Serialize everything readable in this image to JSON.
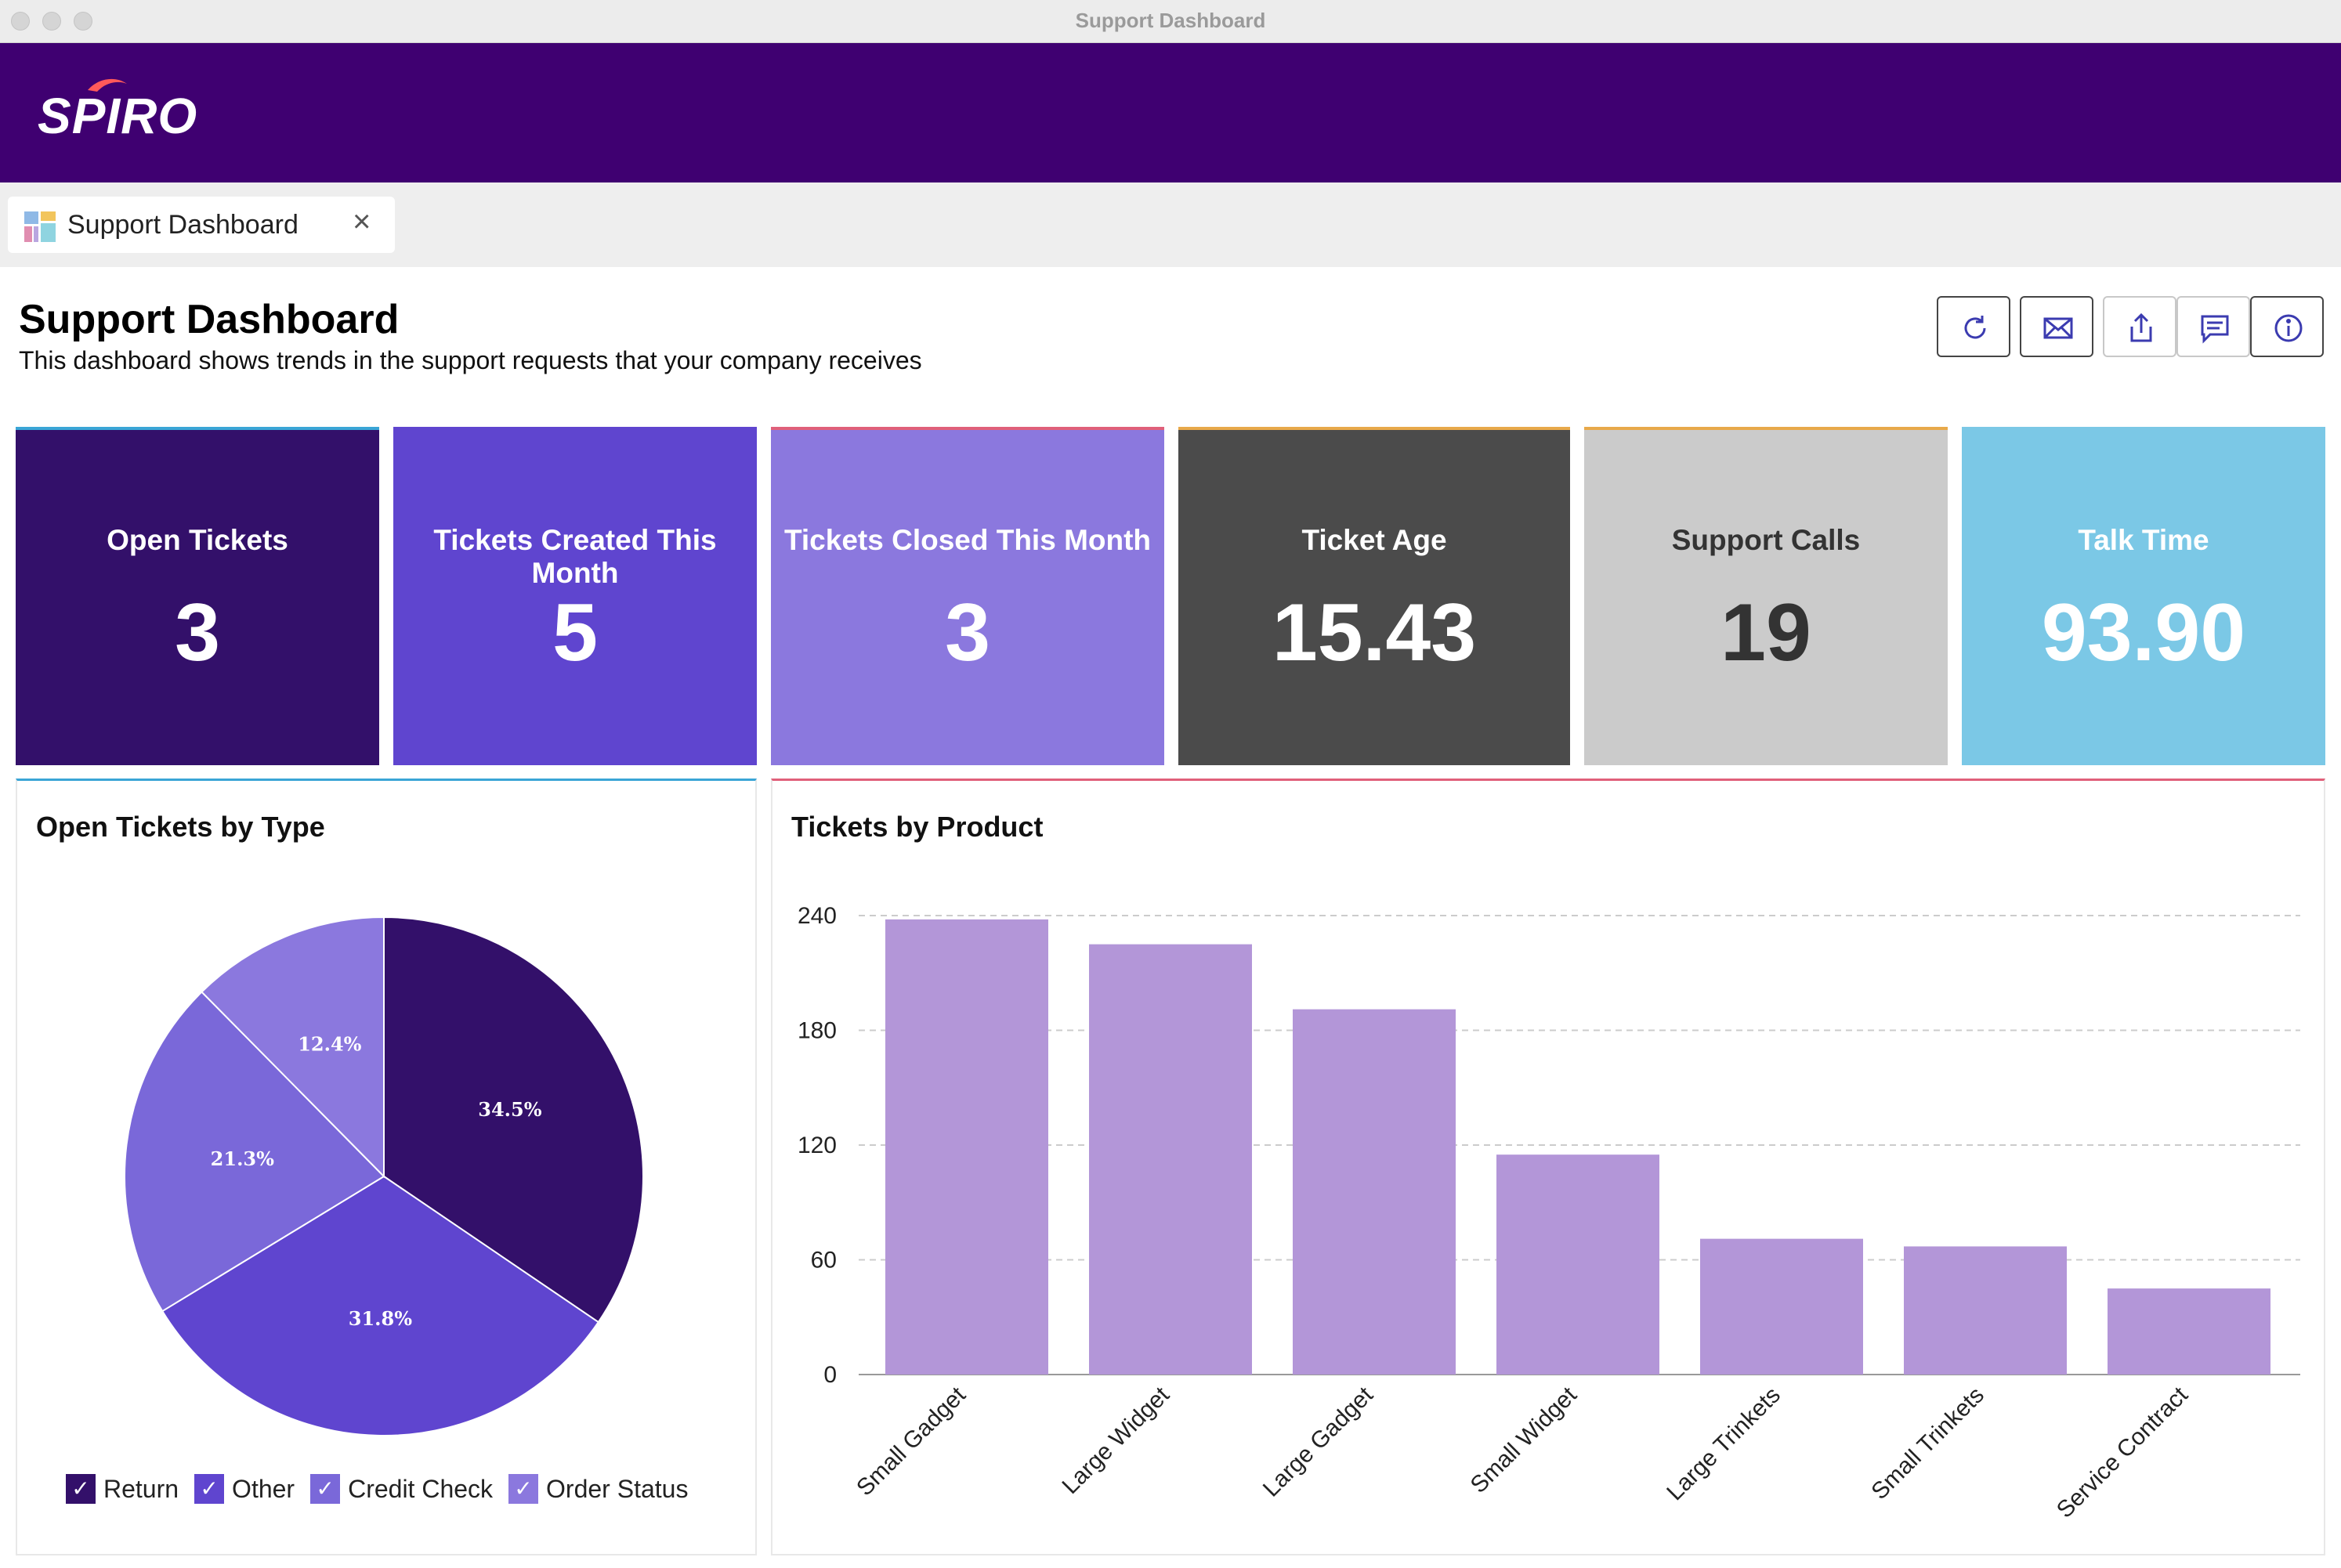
{
  "window": {
    "title": "Support Dashboard"
  },
  "brand": {
    "logo_text": "SPIRO",
    "color": "#3f0071"
  },
  "tab": {
    "label": "Support Dashboard",
    "close": "×"
  },
  "header": {
    "title": "Support Dashboard",
    "subtitle": "This dashboard shows trends in the support requests that your company receives"
  },
  "toolbar": [
    {
      "name": "refresh-icon"
    },
    {
      "name": "email-icon"
    },
    {
      "name": "share-icon"
    },
    {
      "name": "comment-icon"
    },
    {
      "name": "info-icon"
    }
  ],
  "tiles": [
    {
      "label": "Open Tickets",
      "value": "3",
      "bg": "#33106a",
      "fg": "#ffffff",
      "accent": "#3aa5d6"
    },
    {
      "label": "Tickets Created This Month",
      "value": "5",
      "bg": "#5f45cf",
      "fg": "#ffffff",
      "accent": "#5f45cf"
    },
    {
      "label": "Tickets Closed This Month",
      "value": "3",
      "bg": "#8b78de",
      "fg": "#ffffff",
      "accent": "#e0607a"
    },
    {
      "label": "Ticket Age",
      "value": "15.43",
      "bg": "#4b4b4b",
      "fg": "#ffffff",
      "accent": "#e8a94a"
    },
    {
      "label": "Support Calls",
      "value": "19",
      "bg": "#cbcbcb",
      "fg": "#333333",
      "accent": "#e8a94a"
    },
    {
      "label": "Talk Time",
      "value": "93.90",
      "bg": "#7bc8e6",
      "fg": "#ffffff",
      "accent": "#7bc8e6"
    }
  ],
  "pie_panel": {
    "title": "Open Tickets by Type",
    "accent": "#3aa5d6"
  },
  "bar_panel": {
    "title": "Tickets by Product",
    "accent": "#e0607a"
  },
  "chart_data": [
    {
      "type": "pie",
      "title": "Open Tickets by Type",
      "slices": [
        {
          "label": "Return",
          "value": 34.5,
          "text": "34.5%",
          "color": "#33106a"
        },
        {
          "label": "Other",
          "value": 31.8,
          "text": "31.8%",
          "color": "#5f45cf"
        },
        {
          "label": "Credit Check",
          "value": 21.3,
          "text": "21.3%",
          "color": "#7a68d9"
        },
        {
          "label": "Order Status",
          "value": 12.4,
          "text": "12.4%",
          "color": "#8b78de"
        }
      ],
      "legend": [
        "Return",
        "Other",
        "Credit Check",
        "Order Status"
      ],
      "legend_check": "✓"
    },
    {
      "type": "bar",
      "title": "Tickets by Product",
      "categories": [
        "Small Gadget",
        "Large Widget",
        "Large Gadget",
        "Small Widget",
        "Large Trinkets",
        "Small Trinkets",
        "Service Contract"
      ],
      "values": [
        238,
        225,
        191,
        115,
        71,
        67,
        45
      ],
      "ylim": [
        0,
        240
      ],
      "yticks": [
        0,
        60,
        120,
        180,
        240
      ],
      "color": "#b396d8",
      "grid": true
    }
  ]
}
